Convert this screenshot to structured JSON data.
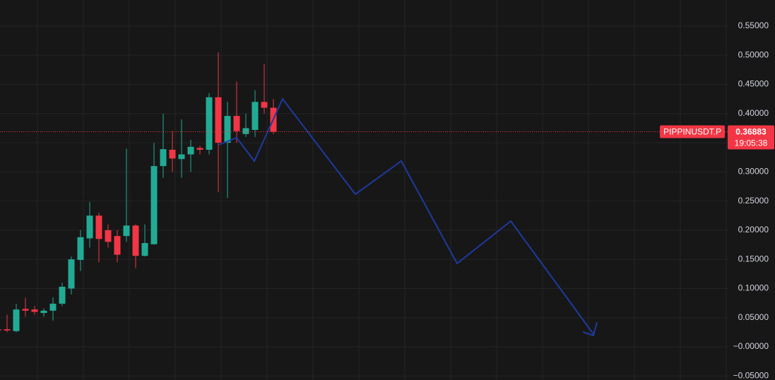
{
  "chart_data": {
    "type": "candlestick",
    "symbol": "PIPPINUSDT.P",
    "last_price": 0.36883,
    "countdown": "19:05:38",
    "up_color": "#22ab94",
    "down_color": "#f23645",
    "grid": true,
    "ylim": [
      -0.0569,
      0.5948
    ],
    "yticks": [
      {
        "value": 0.55,
        "label": "0.55000"
      },
      {
        "value": 0.5,
        "label": "0.50000"
      },
      {
        "value": 0.45,
        "label": "0.45000"
      },
      {
        "value": 0.4,
        "label": "0.40000"
      },
      {
        "value": 0.35,
        "label": "0.35000"
      },
      {
        "value": 0.3,
        "label": "0.30000"
      },
      {
        "value": 0.25,
        "label": "0.25000"
      },
      {
        "value": 0.2,
        "label": "0.20000"
      },
      {
        "value": 0.15,
        "label": "0.15000"
      },
      {
        "value": 0.1,
        "label": "0.10000"
      },
      {
        "value": 0.05,
        "label": "0.05000"
      },
      {
        "value": 0,
        "label": "−0.00000"
      },
      {
        "value": -0.05,
        "label": "−0.05000"
      }
    ],
    "open": [
      0.03,
      0.03,
      0.027,
      0.065,
      0.064,
      0.058,
      0.062,
      0.074,
      0.1,
      0.149,
      0.186,
      0.225,
      0.2,
      0.19,
      0.19,
      0.208,
      0.156,
      0.176,
      0.31,
      0.338,
      0.322,
      0.33,
      0.341,
      0.338,
      0.428,
      0.35,
      0.396,
      0.365,
      0.372,
      0.42,
      0.41
    ],
    "high": [
      0.035,
      0.055,
      0.074,
      0.084,
      0.07,
      0.066,
      0.085,
      0.11,
      0.155,
      0.2,
      0.248,
      0.23,
      0.21,
      0.2,
      0.34,
      0.21,
      0.21,
      0.35,
      0.4,
      0.37,
      0.39,
      0.355,
      0.345,
      0.435,
      0.505,
      0.42,
      0.455,
      0.4,
      0.44,
      0.485,
      0.425
    ],
    "low": [
      0.025,
      0.025,
      0.025,
      0.052,
      0.055,
      0.052,
      0.045,
      0.07,
      0.09,
      0.13,
      0.17,
      0.145,
      0.17,
      0.145,
      0.18,
      0.135,
      0.155,
      0.175,
      0.29,
      0.3,
      0.29,
      0.3,
      0.33,
      0.33,
      0.265,
      0.255,
      0.35,
      0.36,
      0.36,
      0.4,
      0.365
    ],
    "close": [
      0.028,
      0.028,
      0.064,
      0.062,
      0.06,
      0.062,
      0.074,
      0.103,
      0.15,
      0.188,
      0.225,
      0.185,
      0.18,
      0.158,
      0.208,
      0.156,
      0.178,
      0.31,
      0.339,
      0.323,
      0.33,
      0.343,
      0.338,
      0.428,
      0.35,
      0.396,
      0.37,
      0.375,
      0.42,
      0.41,
      0.36883
    ]
  }
}
